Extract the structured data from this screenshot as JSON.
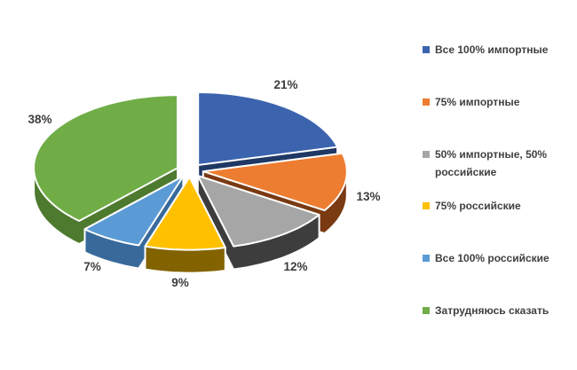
{
  "chart_data": {
    "type": "pie",
    "style": "3d-exploded",
    "title": "",
    "unit": "%",
    "legend_position": "right",
    "start_angle_deg": 0,
    "direction": "clockwise",
    "background": "#ffffff",
    "data_label_color": "#3c3c3c",
    "legend_text_color": "#404040",
    "slices": [
      {
        "label": "Все 100% импортные",
        "value": 21,
        "display": "21%",
        "color": "#3b63ae",
        "side_color": "#1f3864"
      },
      {
        "label": "75% импортные",
        "value": 13,
        "display": "13%",
        "color": "#ed7d31",
        "side_color": "#7a3a12"
      },
      {
        "label": "50% импортные, 50% российские",
        "value": 12,
        "display": "12%",
        "color": "#a6a6a6",
        "side_color": "#3d3d3d"
      },
      {
        "label": "75% российские",
        "value": 9,
        "display": "9%",
        "color": "#ffc000",
        "side_color": "#826300"
      },
      {
        "label": "Все 100% российские",
        "value": 7,
        "display": "7%",
        "color": "#5b9bd5",
        "side_color": "#38699b"
      },
      {
        "label": "Затрудняюсь сказать",
        "value": 38,
        "display": "38%",
        "color": "#70ad47",
        "side_color": "#4d7a2e"
      }
    ]
  }
}
